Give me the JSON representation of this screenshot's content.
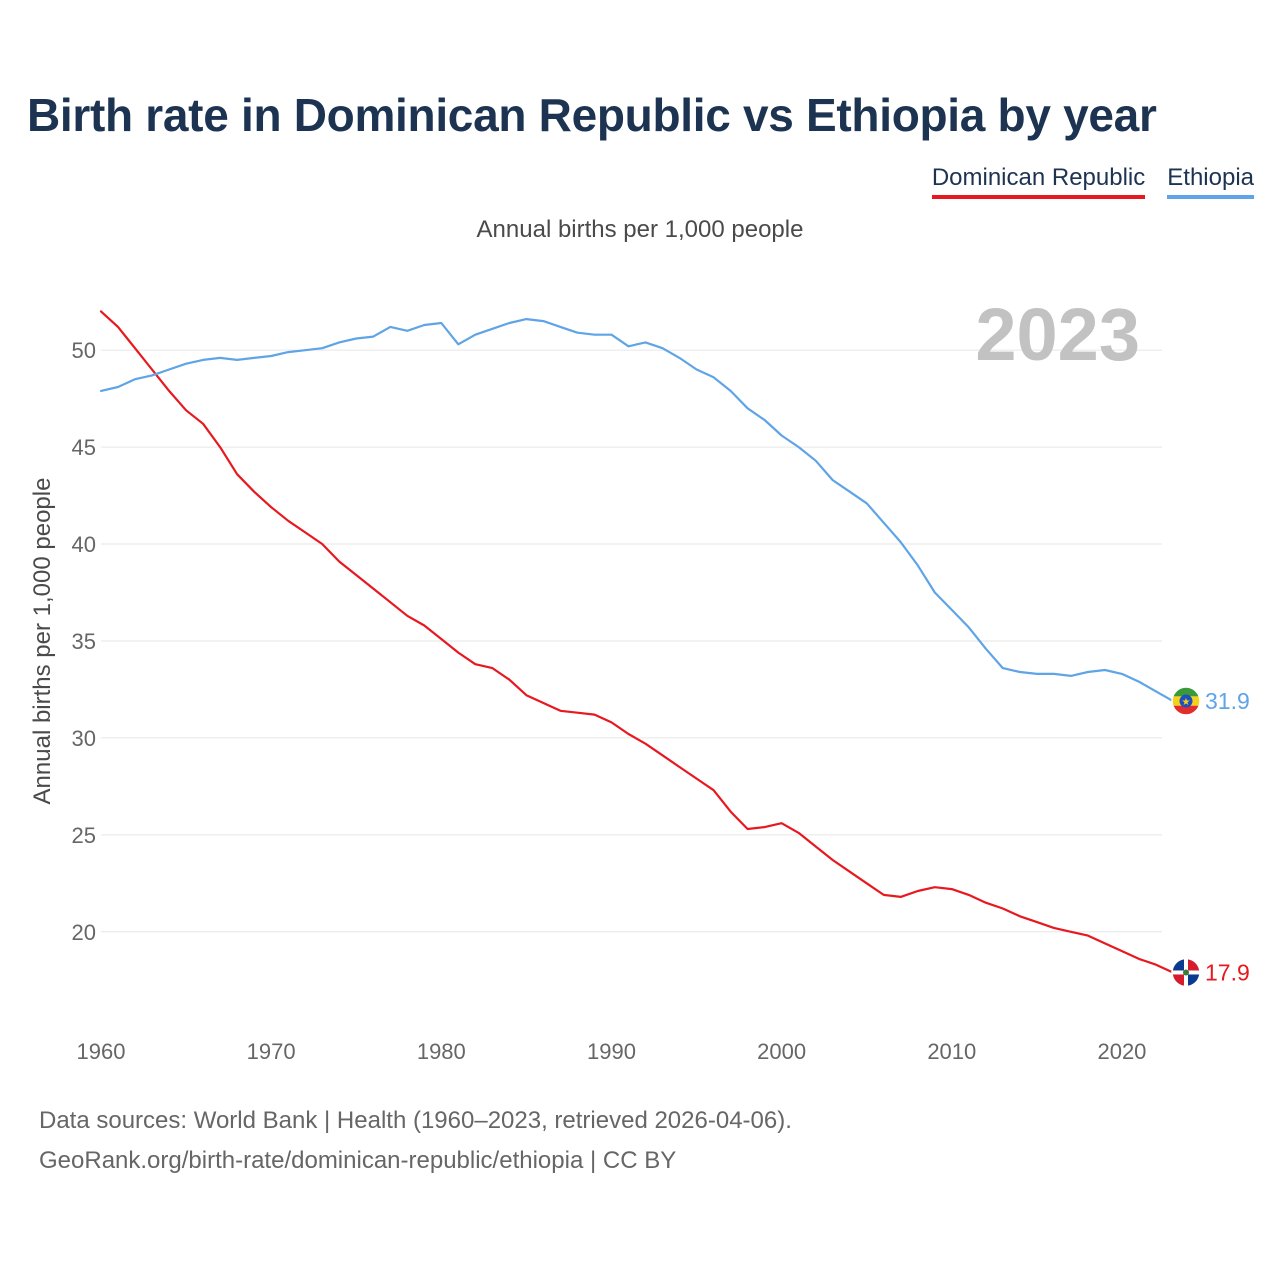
{
  "colors": {
    "title": "#1d3352",
    "dominican_republic": "#e8181f",
    "ethiopia": "#5fa4e6",
    "grid": "#e6e6e6",
    "tick": "#666666",
    "year_watermark": "#c2c2c2"
  },
  "chart_data": {
    "type": "line",
    "title": "Birth rate in Dominican Republic vs Ethiopia by year",
    "subtitle": "Annual births per 1,000 people",
    "ylabel": "Annual births per 1,000 people",
    "xlabel": "",
    "xlim": [
      1960,
      2023
    ],
    "ylim": [
      15.5,
      53
    ],
    "x_ticks": [
      1960,
      1970,
      1980,
      1990,
      2000,
      2010,
      2020
    ],
    "y_ticks": [
      20,
      25,
      30,
      35,
      40,
      45,
      50
    ],
    "year_label": "2023",
    "grid": true,
    "legend_position": "top-right",
    "x": [
      1960,
      1961,
      1962,
      1963,
      1964,
      1965,
      1966,
      1967,
      1968,
      1969,
      1970,
      1971,
      1972,
      1973,
      1974,
      1975,
      1976,
      1977,
      1978,
      1979,
      1980,
      1981,
      1982,
      1983,
      1984,
      1985,
      1986,
      1987,
      1988,
      1989,
      1990,
      1991,
      1992,
      1993,
      1994,
      1995,
      1996,
      1997,
      1998,
      1999,
      2000,
      2001,
      2002,
      2003,
      2004,
      2005,
      2006,
      2007,
      2008,
      2009,
      2010,
      2011,
      2012,
      2013,
      2014,
      2015,
      2016,
      2017,
      2018,
      2019,
      2020,
      2021,
      2022,
      2023
    ],
    "series": [
      {
        "name": "Dominican Republic",
        "color_key": "dominican_republic",
        "flag": "dominican-republic",
        "end_label": "17.9",
        "values": [
          52.0,
          51.2,
          50.1,
          49.0,
          47.9,
          46.9,
          46.2,
          45.0,
          43.6,
          42.7,
          41.9,
          41.2,
          40.6,
          40.0,
          39.1,
          38.4,
          37.7,
          37.0,
          36.3,
          35.8,
          35.1,
          34.4,
          33.8,
          33.6,
          33.0,
          32.2,
          31.8,
          31.4,
          31.3,
          31.2,
          30.8,
          30.2,
          29.7,
          29.1,
          28.5,
          27.9,
          27.3,
          26.2,
          25.3,
          25.4,
          25.6,
          25.1,
          24.4,
          23.7,
          23.1,
          22.5,
          21.9,
          21.8,
          22.1,
          22.3,
          22.2,
          21.9,
          21.5,
          21.2,
          20.8,
          20.5,
          20.2,
          20.0,
          19.8,
          19.4,
          19.0,
          18.6,
          18.3,
          17.9
        ]
      },
      {
        "name": "Ethiopia",
        "color_key": "ethiopia",
        "flag": "ethiopia",
        "end_label": "31.9",
        "values": [
          47.9,
          48.1,
          48.5,
          48.7,
          49.0,
          49.3,
          49.5,
          49.6,
          49.5,
          49.6,
          49.7,
          49.9,
          50.0,
          50.1,
          50.4,
          50.6,
          50.7,
          51.2,
          51.0,
          51.3,
          51.4,
          50.3,
          50.8,
          51.1,
          51.4,
          51.6,
          51.5,
          51.2,
          50.9,
          50.8,
          50.8,
          50.2,
          50.4,
          50.1,
          49.6,
          49.0,
          48.6,
          47.9,
          47.0,
          46.4,
          45.6,
          45.0,
          44.3,
          43.3,
          42.7,
          42.1,
          41.1,
          40.1,
          38.9,
          37.5,
          36.6,
          35.7,
          34.6,
          33.6,
          33.4,
          33.3,
          33.3,
          33.2,
          33.4,
          33.5,
          33.3,
          32.9,
          32.4,
          31.9
        ]
      }
    ]
  },
  "footer": {
    "line1": "Data sources: World Bank | Health (1960–2023, retrieved 2026-04-06).",
    "line2": "GeoRank.org/birth-rate/dominican-republic/ethiopia | CC BY"
  }
}
